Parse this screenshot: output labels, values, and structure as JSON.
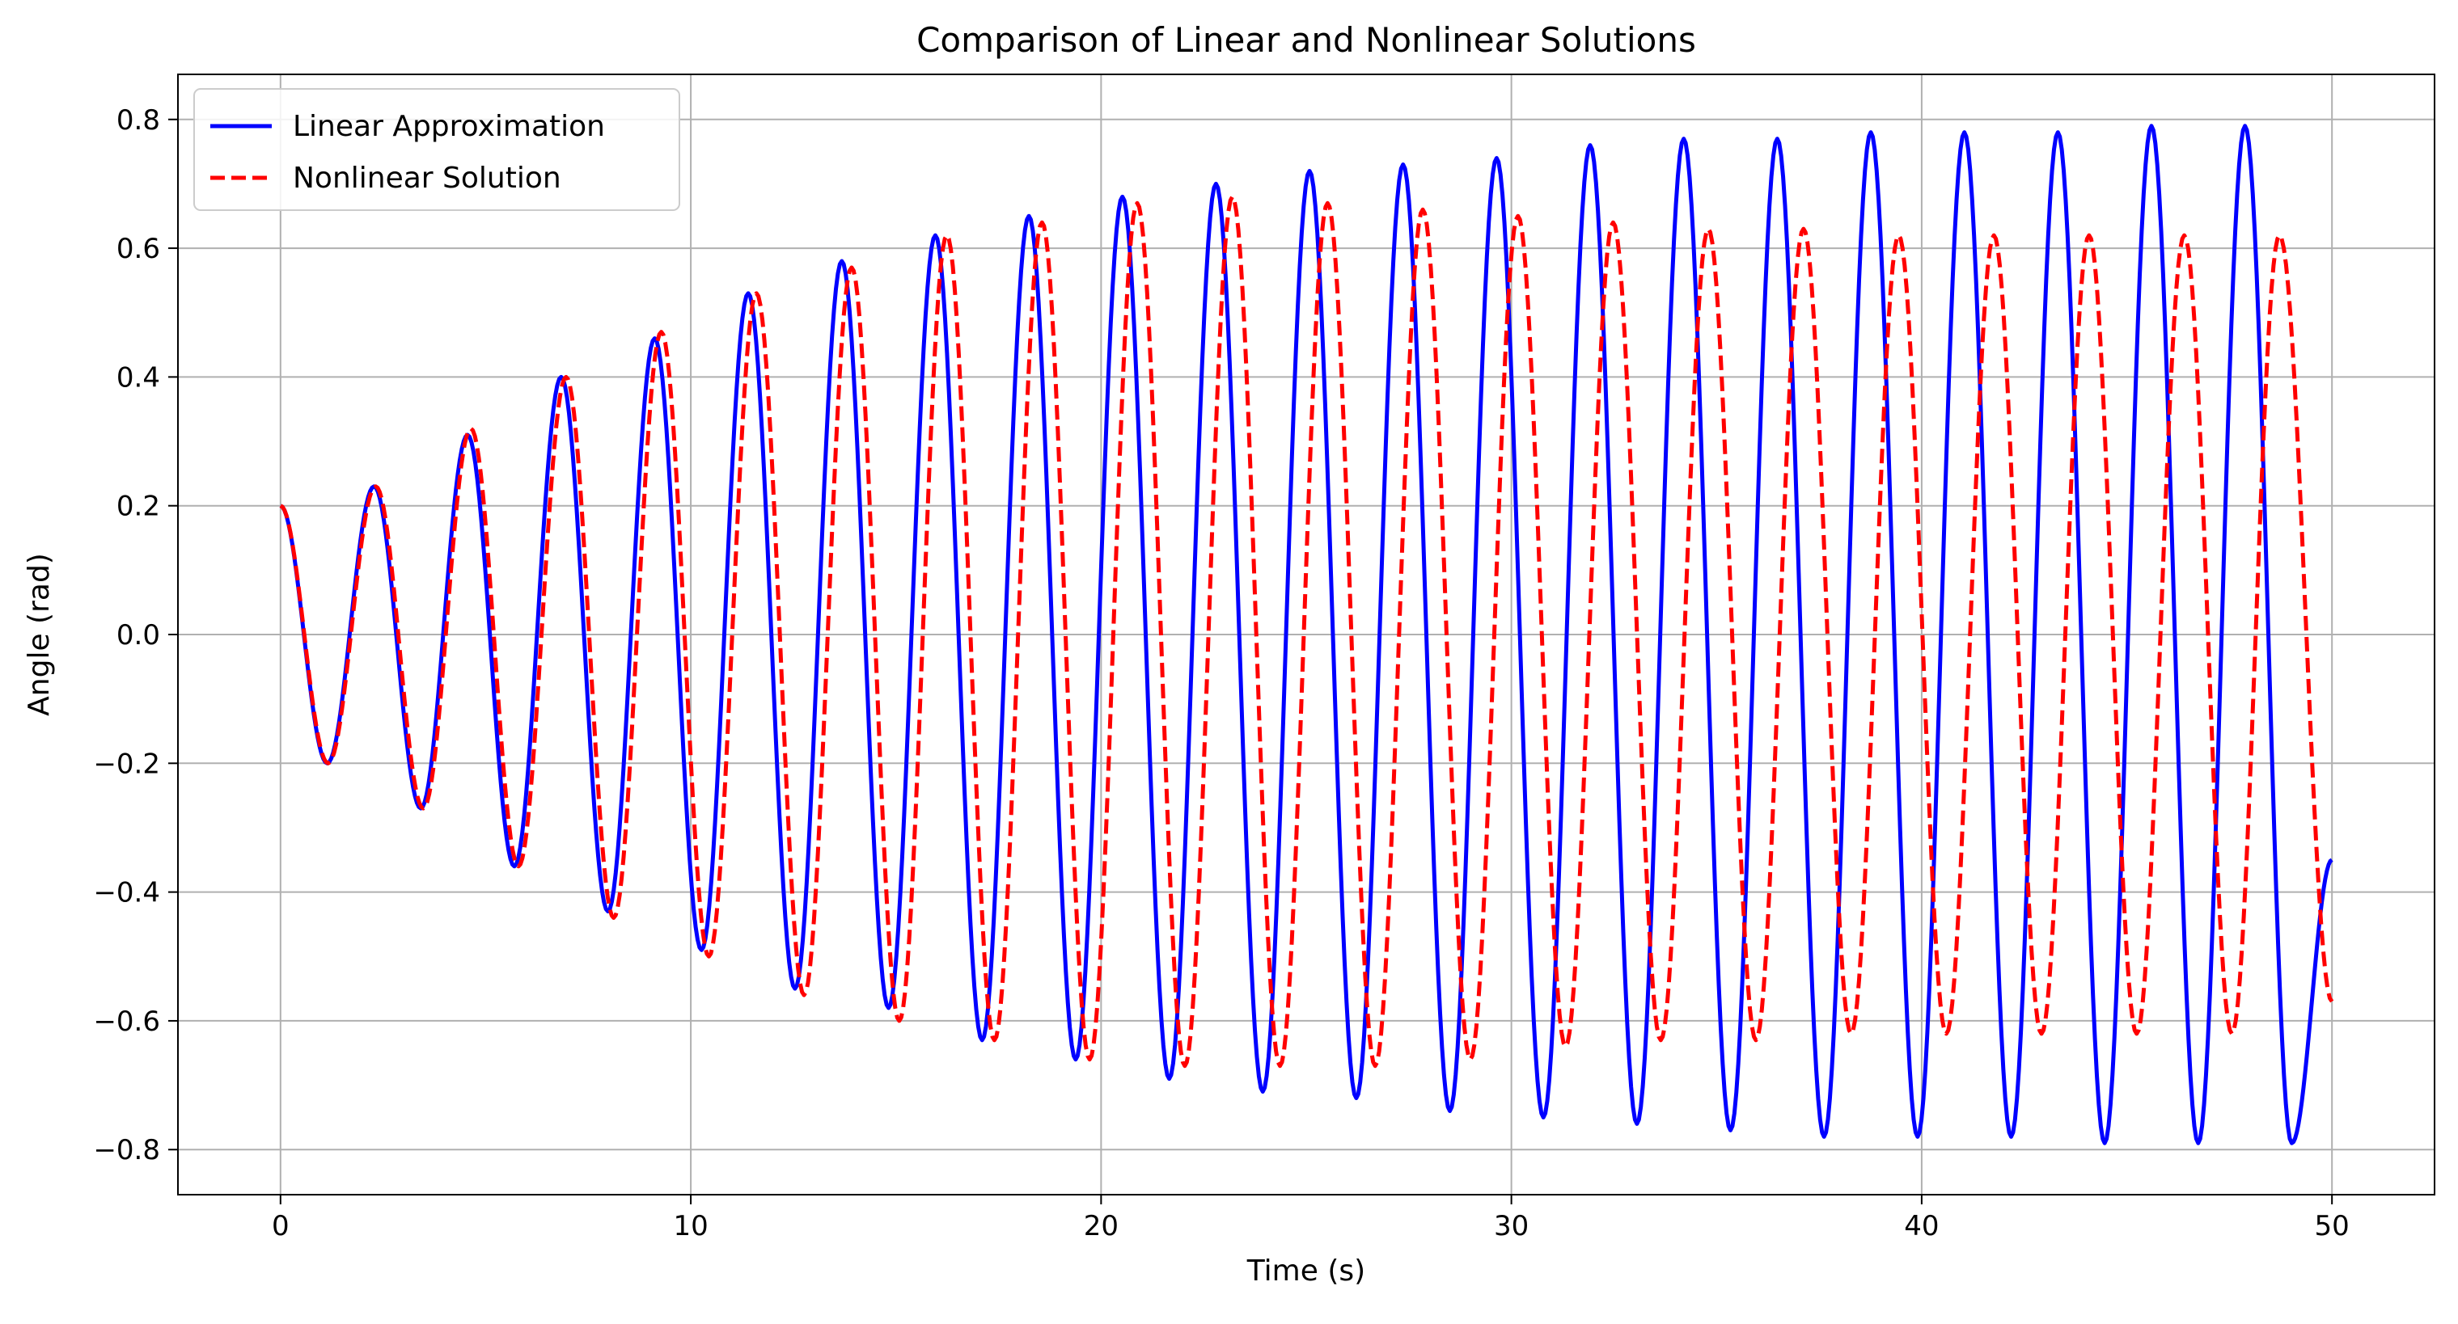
{
  "chart_data": {
    "type": "line",
    "title": "Comparison of Linear and Nonlinear Solutions",
    "xlabel": "Time (s)",
    "ylabel": "Angle (rad)",
    "xlim": [
      -2.5,
      52.5
    ],
    "ylim": [
      -0.87,
      0.87
    ],
    "xticks": [
      0,
      10,
      20,
      30,
      40,
      50
    ],
    "xtick_labels": [
      "0",
      "10",
      "20",
      "30",
      "40",
      "50"
    ],
    "yticks": [
      -0.8,
      -0.6,
      -0.4,
      -0.2,
      0.0,
      0.2,
      0.4,
      0.6,
      0.8
    ],
    "ytick_labels": [
      "−0.8",
      "−0.6",
      "−0.4",
      "−0.2",
      "0.0",
      "0.2",
      "0.4",
      "0.6",
      "0.8"
    ],
    "grid": true,
    "legend_position": "top-left",
    "series": [
      {
        "name": "Linear Approximation",
        "color": "#0000ff",
        "style": "solid",
        "sampled_from": "damped-driven oscillation estimate",
        "x": [
          0,
          1.14,
          2.28,
          3.42,
          4.56,
          5.7,
          6.84,
          7.98,
          9.12,
          10.26,
          11.4,
          12.54,
          13.68,
          14.82,
          15.96,
          17.1,
          18.24,
          19.38,
          20.52,
          21.66,
          22.8,
          23.94,
          25.08,
          26.22,
          27.36,
          28.5,
          29.64,
          30.78,
          31.92,
          33.06,
          34.2,
          35.34,
          36.48,
          37.62,
          38.76,
          39.9,
          41.04,
          42.18,
          43.32,
          44.46,
          45.6,
          46.74,
          47.88,
          49.02,
          50.0
        ],
        "y": [
          0.2,
          -0.2,
          0.23,
          -0.27,
          0.31,
          -0.36,
          0.4,
          -0.43,
          0.46,
          -0.49,
          0.53,
          -0.55,
          0.58,
          -0.58,
          0.62,
          -0.63,
          0.65,
          -0.66,
          0.68,
          -0.69,
          0.7,
          -0.71,
          0.72,
          -0.72,
          0.73,
          -0.74,
          0.74,
          -0.75,
          0.76,
          -0.76,
          0.77,
          -0.77,
          0.77,
          -0.78,
          0.78,
          -0.78,
          0.78,
          -0.78,
          0.78,
          -0.79,
          0.79,
          -0.79,
          0.79,
          -0.79,
          -0.35
        ]
      },
      {
        "name": "Nonlinear Solution",
        "color": "#ff0000",
        "style": "dashed",
        "sampled_from": "damped-driven oscillation estimate",
        "x": [
          0,
          1.16,
          2.32,
          3.48,
          4.64,
          5.8,
          6.96,
          8.12,
          9.28,
          10.44,
          11.6,
          12.76,
          13.92,
          15.08,
          16.24,
          17.4,
          18.56,
          19.72,
          20.88,
          22.04,
          23.2,
          24.36,
          25.52,
          26.68,
          27.84,
          29.0,
          30.16,
          31.32,
          32.48,
          33.64,
          34.8,
          35.96,
          37.12,
          38.28,
          39.44,
          40.6,
          41.76,
          42.92,
          44.08,
          45.24,
          46.4,
          47.56,
          48.72,
          50.0
        ],
        "y": [
          0.2,
          -0.2,
          0.23,
          -0.27,
          0.32,
          -0.36,
          0.4,
          -0.44,
          0.47,
          -0.5,
          0.53,
          -0.56,
          0.57,
          -0.6,
          0.62,
          -0.63,
          0.64,
          -0.66,
          0.67,
          -0.67,
          0.68,
          -0.67,
          0.67,
          -0.67,
          0.66,
          -0.66,
          0.65,
          -0.64,
          0.64,
          -0.63,
          0.63,
          -0.63,
          0.63,
          -0.62,
          0.62,
          -0.62,
          0.62,
          -0.62,
          0.62,
          -0.62,
          0.62,
          -0.62,
          0.62,
          -0.57
        ]
      }
    ]
  }
}
